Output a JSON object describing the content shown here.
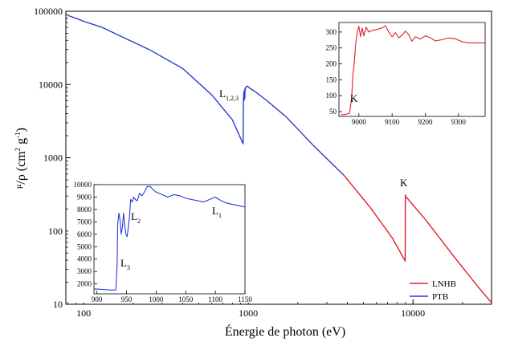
{
  "chart_data": {
    "type": "line",
    "xscale": "log",
    "yscale": "log",
    "xlabel": "Énergie de photon (eV)",
    "ylabel": "μ/ρ (cm² g⁻¹)",
    "ylabel_parts": {
      "mu": "μ",
      "rho": "/ρ (cm",
      "sq": "2",
      "mid": " g",
      "neg": "-1",
      "close": ")"
    },
    "xlim": [
      78,
      30000
    ],
    "ylim": [
      10,
      100000
    ],
    "x_ticks": [
      {
        "value": 100,
        "label": "100"
      },
      {
        "value": 1000,
        "label": "1000"
      },
      {
        "value": 10000,
        "label": "10000"
      }
    ],
    "y_ticks": [
      {
        "value": 10,
        "label": "10"
      },
      {
        "value": 100,
        "label": "100"
      },
      {
        "value": 1000,
        "label": "1000"
      },
      {
        "value": 10000,
        "label": "10000"
      },
      {
        "value": 100000,
        "label": "100000"
      }
    ],
    "series": [
      {
        "name": "PTB",
        "color": "#2a3bd6",
        "x": [
          80,
          90,
          100,
          130,
          170,
          250,
          400,
          600,
          800,
          930,
          933,
          938,
          942,
          947,
          952,
          957,
          962,
          970,
          990,
          1020,
          1100,
          1300,
          1700,
          2500,
          3800
        ],
        "y": [
          88000,
          80000,
          73000,
          60000,
          45000,
          30000,
          16500,
          7200,
          3300,
          1550,
          5500,
          7800,
          6000,
          8400,
          6400,
          8900,
          8700,
          9300,
          9500,
          8900,
          8000,
          6000,
          3600,
          1450,
          580
        ]
      },
      {
        "name": "LNHB",
        "color": "#e0202a",
        "x": [
          3800,
          5500,
          7500,
          8970,
          8985,
          9000,
          9050,
          9500,
          12000,
          18000,
          25000,
          30000
        ],
        "y": [
          580,
          210,
          80,
          39,
          260,
          310,
          295,
          260,
          140,
          43,
          17,
          10.5
        ]
      }
    ],
    "legend": {
      "position": "bottom-right",
      "entries": [
        "LNHB",
        "PTB"
      ]
    },
    "annotations": [
      {
        "text": "L",
        "subscript": "1,2,3",
        "x": 680,
        "y": 8200
      },
      {
        "text": "K",
        "subscript": "",
        "x": 8900,
        "y": 500
      }
    ],
    "insets": [
      {
        "name": "inset-k-edge",
        "position": "top-right",
        "color": "#e0202a",
        "xlim": [
          8940,
          9380
        ],
        "ylim": [
          35,
          330
        ],
        "x_ticks": [
          {
            "value": 9000,
            "label": "9000"
          },
          {
            "value": 9100,
            "label": "9100"
          },
          {
            "value": 9200,
            "label": "9200"
          },
          {
            "value": 9300,
            "label": "9300"
          }
        ],
        "y_ticks": [
          {
            "value": 50,
            "label": "50"
          },
          {
            "value": 100,
            "label": "100"
          },
          {
            "value": 150,
            "label": "150"
          },
          {
            "value": 200,
            "label": "200"
          },
          {
            "value": 250,
            "label": "250"
          },
          {
            "value": 300,
            "label": "300"
          }
        ],
        "x": [
          8945,
          8960,
          8972,
          8978,
          8982,
          8986,
          8990,
          8995,
          9000,
          9005,
          9010,
          9015,
          9022,
          9030,
          9040,
          9055,
          9070,
          9080,
          9090,
          9100,
          9110,
          9120,
          9130,
          9140,
          9150,
          9160,
          9170,
          9185,
          9200,
          9215,
          9230,
          9250,
          9270,
          9290,
          9310,
          9330,
          9350,
          9380
        ],
        "y": [
          40,
          41,
          45,
          90,
          165,
          200,
          260,
          300,
          318,
          285,
          312,
          288,
          315,
          300,
          305,
          308,
          313,
          320,
          300,
          285,
          298,
          282,
          290,
          303,
          292,
          271,
          285,
          278,
          288,
          282,
          272,
          276,
          281,
          279,
          270,
          266,
          266,
          266
        ],
        "annotations": [
          {
            "text": "K",
            "subscript": "",
            "x": 8992,
            "y": 68
          }
        ]
      },
      {
        "name": "inset-l-edges",
        "position": "bottom-left",
        "color": "#2a3bd6",
        "xlim": [
          895,
          1150
        ],
        "ylim": [
          1200,
          10000
        ],
        "x_ticks": [
          {
            "value": 900,
            "label": "900"
          },
          {
            "value": 950,
            "label": "950"
          },
          {
            "value": 1000,
            "label": "1000"
          },
          {
            "value": 1050,
            "label": "1050"
          },
          {
            "value": 1100,
            "label": "1100"
          },
          {
            "value": 1150,
            "label": "1150"
          }
        ],
        "y_ticks": [
          {
            "value": 2000,
            "label": "2000"
          },
          {
            "value": 3000,
            "label": "3000"
          },
          {
            "value": 4000,
            "label": "4000"
          },
          {
            "value": 5000,
            "label": "5000"
          },
          {
            "value": 6000,
            "label": "6000"
          },
          {
            "value": 7000,
            "label": "7000"
          },
          {
            "value": 8000,
            "label": "8000"
          },
          {
            "value": 9000,
            "label": "9000"
          },
          {
            "value": 10000,
            "label": "10000"
          }
        ],
        "x": [
          895,
          910,
          925,
          932,
          934,
          935,
          937,
          939,
          941,
          943,
          945,
          947,
          949,
          951,
          953,
          955,
          957,
          960,
          962,
          965,
          968,
          972,
          976,
          980,
          985,
          990,
          995,
          1000,
          1010,
          1020,
          1030,
          1040,
          1050,
          1060,
          1070,
          1080,
          1090,
          1100,
          1110,
          1120,
          1130,
          1140,
          1150
        ],
        "y": [
          1600,
          1550,
          1500,
          1520,
          3500,
          6800,
          7700,
          7200,
          6000,
          6600,
          7700,
          6700,
          6000,
          5800,
          6600,
          7400,
          8800,
          8600,
          9000,
          8800,
          8700,
          9300,
          9100,
          9400,
          9850,
          9850,
          9600,
          9400,
          9200,
          9000,
          9200,
          9100,
          8900,
          8800,
          8700,
          8600,
          8800,
          9000,
          8700,
          8500,
          8400,
          8300,
          8200
        ],
        "annotations": [
          {
            "text": "L",
            "subscript": "3",
            "x": 937,
            "y": 3300
          },
          {
            "text": "L",
            "subscript": "2",
            "x": 962,
            "y": 7300
          },
          {
            "text": "L",
            "subscript": "1",
            "x": 1105,
            "y": 7700
          }
        ]
      }
    ]
  }
}
